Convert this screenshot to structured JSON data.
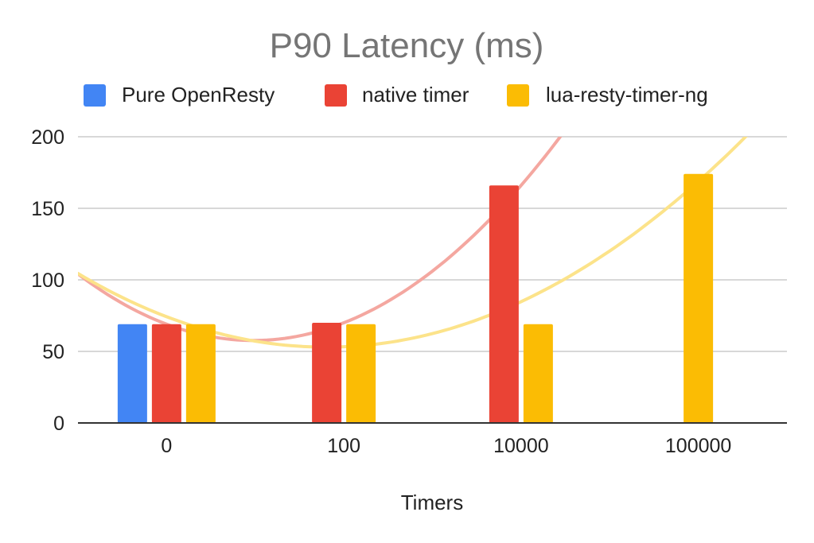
{
  "chart_data": {
    "type": "bar",
    "title": "P90 Latency (ms)",
    "xlabel": "Timers",
    "ylabel": "",
    "categories": [
      "0",
      "100",
      "10000",
      "100000"
    ],
    "ylim": [
      0,
      200
    ],
    "yticks": [
      0,
      50,
      100,
      150,
      200
    ],
    "grid": true,
    "legend_position": "top",
    "series": [
      {
        "name": "Pure OpenResty",
        "color": "#4285f4",
        "values": [
          69,
          null,
          null,
          null
        ]
      },
      {
        "name": "native timer",
        "color": "#ea4335",
        "values": [
          69,
          70,
          166,
          null
        ]
      },
      {
        "name": "lua-resty-timer-ng",
        "color": "#fbbc04",
        "values": [
          69,
          69,
          69,
          174
        ]
      }
    ],
    "trendlines": [
      {
        "series": "native timer",
        "color": "#f4a7a0",
        "type": "polynomial"
      },
      {
        "series": "lua-resty-timer-ng",
        "color": "#fce38a",
        "type": "polynomial"
      }
    ]
  }
}
